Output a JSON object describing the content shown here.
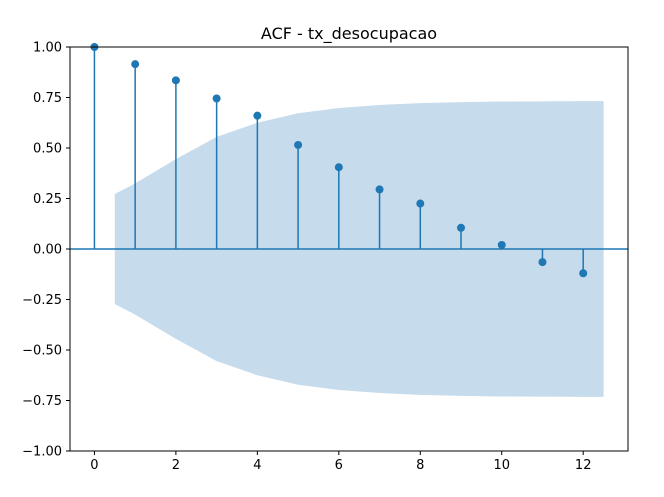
{
  "chart_data": {
    "type": "stem",
    "title": "ACF - tx_desocupacao",
    "xlabel": "",
    "ylabel": "",
    "xlim": [
      -0.6,
      13.1
    ],
    "ylim": [
      -1.0,
      1.0
    ],
    "grid": false,
    "x_ticks": [
      0,
      2,
      4,
      6,
      8,
      10,
      12
    ],
    "y_ticks": [
      -1.0,
      -0.75,
      -0.5,
      -0.25,
      0.0,
      0.25,
      0.5,
      0.75,
      1.0
    ],
    "x_tick_labels": [
      "0",
      "2",
      "4",
      "6",
      "8",
      "10",
      "12"
    ],
    "y_tick_labels": [
      "−1.00",
      "−0.75",
      "−0.50",
      "−0.25",
      "0.00",
      "0.25",
      "0.50",
      "0.75",
      "1.00"
    ],
    "lags": [
      0,
      1,
      2,
      3,
      4,
      5,
      6,
      7,
      8,
      9,
      10,
      11,
      12
    ],
    "values": [
      1.0,
      0.915,
      0.835,
      0.745,
      0.66,
      0.515,
      0.405,
      0.295,
      0.225,
      0.105,
      0.02,
      -0.065,
      -0.12
    ],
    "confidence_band": {
      "x": [
        0.5,
        1,
        2,
        3,
        4,
        5,
        6,
        7,
        8,
        9,
        10,
        11,
        12,
        12.5
      ],
      "upper": [
        0.272,
        0.325,
        0.445,
        0.555,
        0.625,
        0.672,
        0.698,
        0.713,
        0.722,
        0.727,
        0.73,
        0.731,
        0.732,
        0.732
      ]
    },
    "colors": {
      "stem": "#1f77b4",
      "band": "#c6dbec",
      "zero_line": "#1f77b4"
    }
  }
}
